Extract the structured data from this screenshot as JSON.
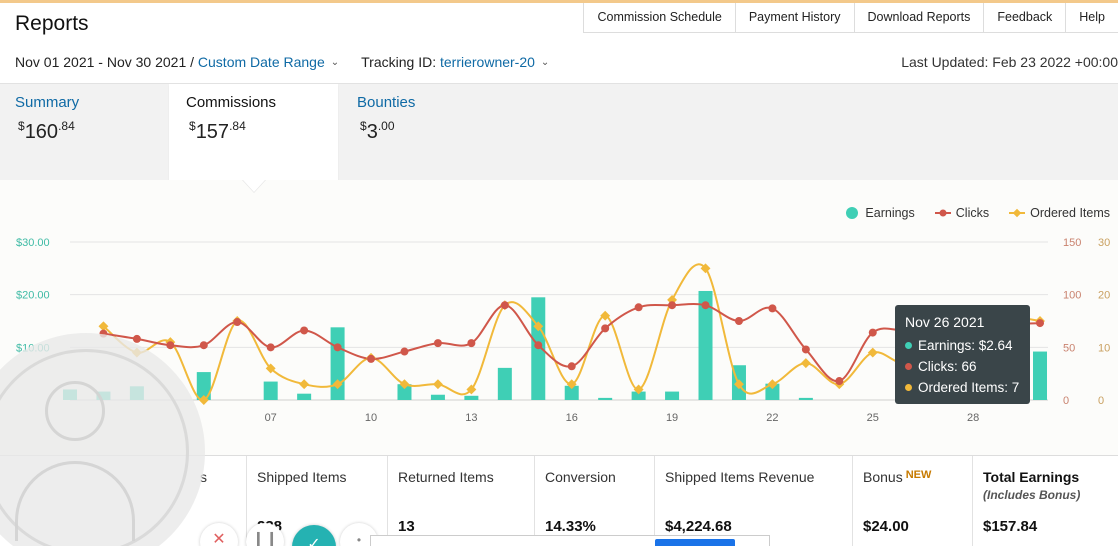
{
  "page": {
    "title": "Reports"
  },
  "topnav": [
    {
      "label": "Commission Schedule"
    },
    {
      "label": "Payment History"
    },
    {
      "label": "Download Reports"
    },
    {
      "label": "Feedback"
    },
    {
      "label": "Help"
    }
  ],
  "filters": {
    "date_range": "Nov 01 2021 - Nov 30 2021 /",
    "date_range_link": "Custom Date Range",
    "tracking_label": "Tracking ID:",
    "tracking_id": "terrierowner-20",
    "last_updated": "Last Updated: Feb 23 2022 +00:00"
  },
  "tabs": [
    {
      "label": "Summary",
      "dollar": "$",
      "whole": "160",
      "cents": ".84"
    },
    {
      "label": "Commissions",
      "dollar": "$",
      "whole": "157",
      "cents": ".84"
    },
    {
      "label": "Bounties",
      "dollar": "$",
      "whole": "3",
      "cents": ".00"
    }
  ],
  "legend": {
    "earnings": "Earnings",
    "clicks": "Clicks",
    "ordered": "Ordered Items"
  },
  "colors": {
    "earnings": "#3fcfb5",
    "clicks": "#d0574a",
    "ordered": "#f1b93a",
    "link": "#0f6aa5"
  },
  "chart_data": {
    "type": "bar",
    "x": [
      1,
      2,
      3,
      4,
      5,
      6,
      7,
      8,
      9,
      10,
      11,
      12,
      13,
      14,
      15,
      16,
      17,
      18,
      19,
      20,
      21,
      22,
      23,
      24,
      25,
      26,
      27,
      28,
      29,
      30
    ],
    "x_tick_labels": [
      "07",
      "10",
      "13",
      "16",
      "19",
      "22",
      "25",
      "28"
    ],
    "x_tick_values": [
      7,
      10,
      13,
      16,
      19,
      22,
      25,
      28
    ],
    "y_left_ticks": [
      "$30.00",
      "$20.00",
      "$10.00"
    ],
    "y_left_range": [
      0,
      30
    ],
    "y_right_clicks_ticks": [
      "150",
      "100",
      "50",
      "0"
    ],
    "y_right_clicks_range": [
      0,
      150
    ],
    "y_right_items_ticks": [
      "30",
      "20",
      "10",
      "0"
    ],
    "y_right_items_range": [
      0,
      30
    ],
    "series": [
      {
        "name": "Earnings",
        "type": "bar",
        "values": [
          2.0,
          1.6,
          2.6,
          0.0,
          5.3,
          0.0,
          3.5,
          1.2,
          13.8,
          0.0,
          3.0,
          1.0,
          0.8,
          6.1,
          19.5,
          2.7,
          0.4,
          1.6,
          1.6,
          20.7,
          6.6,
          3.1,
          0.4,
          0.0,
          0.0,
          2.64,
          0.0,
          4.0,
          0.0,
          9.2
        ]
      },
      {
        "name": "Clicks",
        "type": "line",
        "values": [
          65,
          63,
          58,
          52,
          52,
          74,
          50,
          66,
          50,
          39,
          46,
          54,
          54,
          90,
          52,
          32,
          68,
          88,
          90,
          90,
          75,
          87,
          48,
          18,
          64,
          66,
          70,
          72,
          72,
          73
        ]
      },
      {
        "name": "Ordered Items",
        "type": "line",
        "values": [
          15,
          14,
          9,
          11,
          0,
          15,
          6,
          3,
          3,
          8,
          3,
          3,
          2,
          18,
          14,
          3,
          16,
          2,
          19,
          25,
          3,
          3,
          7,
          3,
          9,
          7,
          12,
          16,
          16,
          15
        ]
      }
    ]
  },
  "tooltip": {
    "title": "Nov 26 2021",
    "earnings": "Earnings: $2.64",
    "clicks": "Clicks: 66",
    "ordered": "Ordered Items: 7"
  },
  "stats": [
    {
      "label": "s",
      "value": ""
    },
    {
      "label": "Shipped Items",
      "value": "238"
    },
    {
      "label": "Returned Items",
      "value": "13"
    },
    {
      "label": "Conversion",
      "value": "14.33%"
    },
    {
      "label": "Shipped Items Revenue",
      "value": "$4,224.68"
    },
    {
      "label": "Bonus",
      "badge": "NEW",
      "value": "$24.00"
    },
    {
      "label": "Total Earnings",
      "sub": "(Includes Bonus)",
      "value": "$157.84"
    }
  ]
}
